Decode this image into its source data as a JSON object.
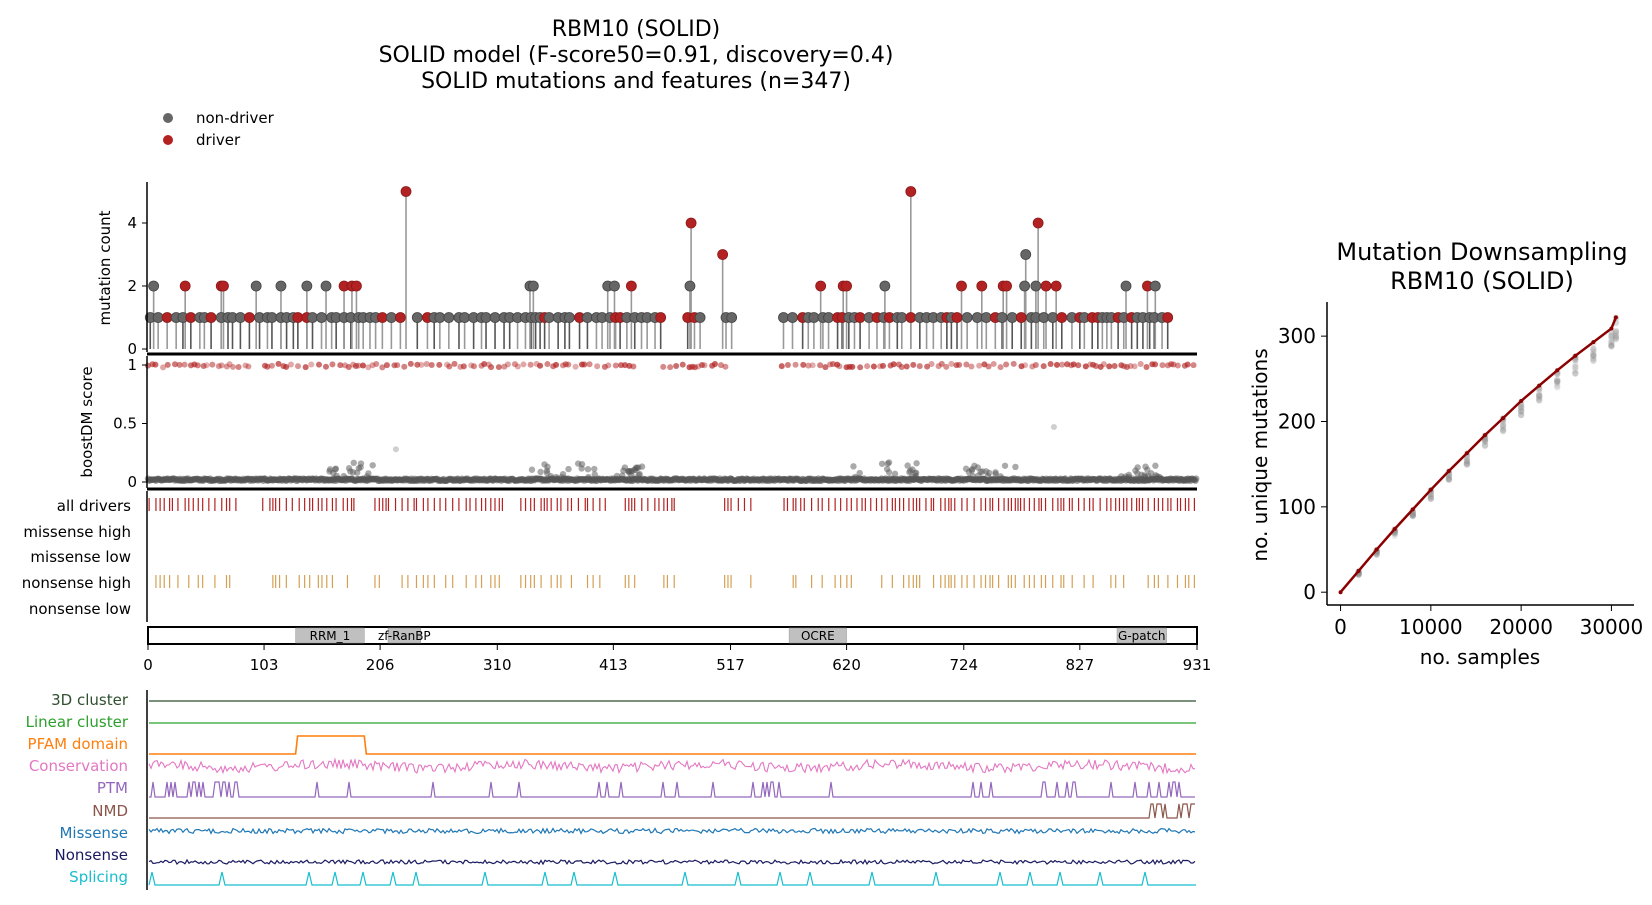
{
  "figure": {
    "title_lines": [
      "RBM10 (SOLID)",
      "SOLID model (F-score50=0.91, discovery=0.4)",
      "SOLID mutations and features (n=347)"
    ]
  },
  "colors": {
    "non_driver": "#666666",
    "driver": "#b22222",
    "all_drivers": "#b22222",
    "nonsense_high": "#d4a054",
    "domain_fill": "#c0c0c0",
    "cluster_3d": "#2f4f2f",
    "cluster_linear": "#2ca02c",
    "pfam": "#ff7f0e",
    "conservation": "#e377c2",
    "ptm": "#9467bd",
    "nmd": "#8c564b",
    "missense": "#1f77b4",
    "nonsense": "#1a1a60",
    "splicing": "#17becf",
    "downsampling_line": "#8b0000"
  },
  "chart_data": [
    {
      "type": "scatter",
      "name": "needle-plot",
      "ylabel": "mutation count",
      "xlim": [
        0,
        931
      ],
      "ylim": [
        0,
        5
      ],
      "yticks": [
        0,
        2,
        4
      ],
      "legend": {
        "placement": "top-left",
        "entries": [
          "non-driver",
          "driver"
        ]
      },
      "tall_points": [
        {
          "x": 5,
          "y": 2,
          "driver": false
        },
        {
          "x": 33,
          "y": 2,
          "driver": true
        },
        {
          "x": 65,
          "y": 2,
          "driver": true
        },
        {
          "x": 67,
          "y": 2,
          "driver": true
        },
        {
          "x": 96,
          "y": 2,
          "driver": false
        },
        {
          "x": 118,
          "y": 2,
          "driver": false
        },
        {
          "x": 141,
          "y": 2,
          "driver": false
        },
        {
          "x": 158,
          "y": 2,
          "driver": false
        },
        {
          "x": 174,
          "y": 2,
          "driver": true
        },
        {
          "x": 181,
          "y": 2,
          "driver": true
        },
        {
          "x": 185,
          "y": 2,
          "driver": true
        },
        {
          "x": 229,
          "y": 5,
          "driver": true
        },
        {
          "x": 339,
          "y": 2,
          "driver": false
        },
        {
          "x": 342,
          "y": 2,
          "driver": false
        },
        {
          "x": 408,
          "y": 2,
          "driver": false
        },
        {
          "x": 414,
          "y": 2,
          "driver": false
        },
        {
          "x": 429,
          "y": 2,
          "driver": true
        },
        {
          "x": 481,
          "y": 2,
          "driver": false
        },
        {
          "x": 482,
          "y": 4,
          "driver": true
        },
        {
          "x": 510,
          "y": 3,
          "driver": true
        },
        {
          "x": 597,
          "y": 2,
          "driver": true
        },
        {
          "x": 617,
          "y": 2,
          "driver": true
        },
        {
          "x": 620,
          "y": 2,
          "driver": true
        },
        {
          "x": 654,
          "y": 2,
          "driver": false
        },
        {
          "x": 677,
          "y": 5,
          "driver": true
        },
        {
          "x": 722,
          "y": 2,
          "driver": true
        },
        {
          "x": 740,
          "y": 2,
          "driver": true
        },
        {
          "x": 759,
          "y": 2,
          "driver": true
        },
        {
          "x": 762,
          "y": 2,
          "driver": true
        },
        {
          "x": 778,
          "y": 2,
          "driver": false
        },
        {
          "x": 779,
          "y": 3,
          "driver": false
        },
        {
          "x": 788,
          "y": 2,
          "driver": false
        },
        {
          "x": 790,
          "y": 4,
          "driver": true
        },
        {
          "x": 797,
          "y": 2,
          "driver": true
        },
        {
          "x": 806,
          "y": 2,
          "driver": true
        },
        {
          "x": 868,
          "y": 2,
          "driver": false
        },
        {
          "x": 887,
          "y": 2,
          "driver": true
        },
        {
          "x": 894,
          "y": 2,
          "driver": false
        }
      ]
    },
    {
      "type": "scatter",
      "name": "boostdm-score",
      "ylabel": "boostDM score",
      "xlim": [
        0,
        931
      ],
      "ylim": [
        0,
        1
      ],
      "yticks": [
        0,
        0.5,
        1
      ]
    },
    {
      "type": "table",
      "name": "driver-tracks",
      "rows": [
        "all drivers",
        "missense high",
        "missense low",
        "nonsense high",
        "nonsense low"
      ]
    },
    {
      "type": "bar",
      "name": "protein-domains",
      "xlim": [
        0,
        931
      ],
      "xticks": [
        0,
        103,
        206,
        310,
        413,
        517,
        620,
        724,
        827,
        931
      ],
      "domains": [
        {
          "name": "RRM_1",
          "start": 131,
          "end": 192
        },
        {
          "name": "zf-RanBP",
          "start": 213,
          "end": 242
        },
        {
          "name": "OCRE",
          "start": 569,
          "end": 620
        },
        {
          "name": "G-patch",
          "start": 860,
          "end": 904
        }
      ]
    },
    {
      "type": "line",
      "name": "feature-tracks",
      "tracks": [
        "3D cluster",
        "Linear cluster",
        "PFAM domain",
        "Conservation",
        "PTM",
        "NMD",
        "Missense",
        "Nonsense",
        "Splicing"
      ]
    },
    {
      "type": "line",
      "name": "mutation-downsampling",
      "title_lines": [
        "Mutation Downsampling",
        "RBM10 (SOLID)"
      ],
      "xlabel": "no. samples",
      "ylabel": "no. unique mutations",
      "xlim": [
        -1500,
        32500
      ],
      "ylim": [
        -15,
        340
      ],
      "xticks": [
        0,
        10000,
        20000,
        30000
      ],
      "yticks": [
        0,
        100,
        200,
        300
      ],
      "x": [
        0,
        2000,
        4000,
        6000,
        8000,
        10000,
        12000,
        14000,
        16000,
        18000,
        20000,
        22000,
        24000,
        26000,
        28000,
        30000,
        30500
      ],
      "y": [
        0,
        25,
        50,
        74,
        97,
        120,
        142,
        163,
        184,
        204,
        224,
        242,
        260,
        277,
        293,
        309,
        322
      ]
    }
  ]
}
